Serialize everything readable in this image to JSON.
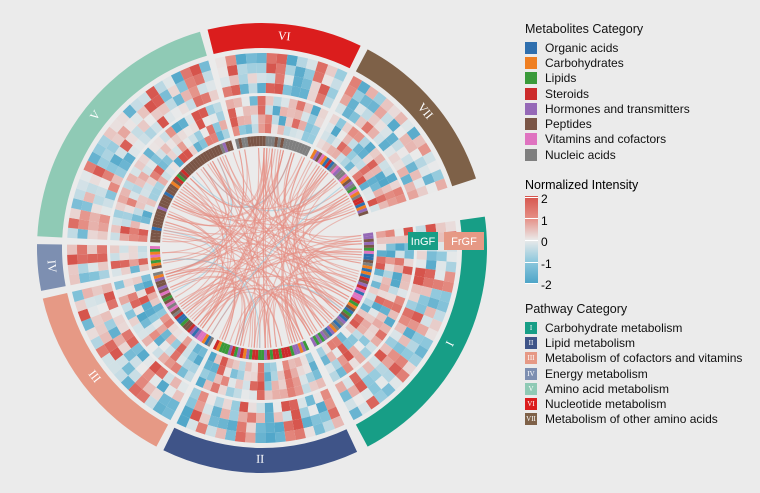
{
  "legends": {
    "metabolites": {
      "title": "Metabolites Category",
      "items": [
        {
          "label": "Organic acids",
          "color": "#2f6fae"
        },
        {
          "label": "Carbohydrates",
          "color": "#ef7f22"
        },
        {
          "label": "Lipids",
          "color": "#3a9a3a"
        },
        {
          "label": "Steroids",
          "color": "#cc2b2b"
        },
        {
          "label": "Hormones and transmitters",
          "color": "#9569b7"
        },
        {
          "label": "Peptides",
          "color": "#7a5546"
        },
        {
          "label": "Vitamins and cofactors",
          "color": "#df73c0"
        },
        {
          "label": "Nucleic acids",
          "color": "#7f7f7f"
        }
      ]
    },
    "intensity": {
      "title": "Normalized Intensity",
      "ticks": [
        "2",
        "1",
        "0",
        "-1",
        "-2"
      ]
    },
    "pathways": {
      "title": "Pathway Category",
      "items": [
        {
          "numeral": "I",
          "label": "Carbohydrate metabolism",
          "color": "#179e86"
        },
        {
          "numeral": "II",
          "label": "Lipid metabolism",
          "color": "#3f5488"
        },
        {
          "numeral": "III",
          "label": "Metabolism of cofactors and vitamins",
          "color": "#e69985"
        },
        {
          "numeral": "IV",
          "label": "Energy metabolism",
          "color": "#7d8fb1"
        },
        {
          "numeral": "V",
          "label": "Amino acid metabolism",
          "color": "#8fcab5"
        },
        {
          "numeral": "VI",
          "label": "Nucleotide metabolism",
          "color": "#db1d1d"
        },
        {
          "numeral": "VII",
          "label": "Metabolism of other amino acids",
          "color": "#7e6148"
        }
      ]
    }
  },
  "track_labels": {
    "inner": "InGF",
    "outer": "FrGF",
    "inner_color": "#179e86",
    "outer_color": "#e69985"
  },
  "chart_data": {
    "type": "heatmap",
    "subtype": "circos chord diagram with heatmap tracks",
    "sectors": [
      {
        "numeral": "I",
        "start_deg": 82,
        "end_deg": 152
      },
      {
        "numeral": "II",
        "start_deg": 155,
        "end_deg": 206
      },
      {
        "numeral": "III",
        "start_deg": 208,
        "end_deg": 257
      },
      {
        "numeral": "IV",
        "start_deg": 259,
        "end_deg": 271
      },
      {
        "numeral": "V",
        "start_deg": 273,
        "end_deg": 344
      },
      {
        "numeral": "VI",
        "start_deg": 346,
        "end_deg": 26
      },
      {
        "numeral": "VII",
        "start_deg": 28,
        "end_deg": 72
      }
    ],
    "heatmap_range": [
      -2,
      2
    ],
    "tracks": [
      "FrGF",
      "InGF"
    ],
    "center": [
      262,
      248
    ]
  }
}
